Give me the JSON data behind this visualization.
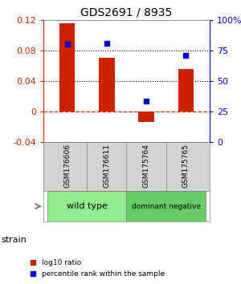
{
  "title": "GDS2691 / 8935",
  "samples": [
    "GSM176606",
    "GSM176611",
    "GSM175764",
    "GSM175765"
  ],
  "log10_ratio": [
    0.116,
    0.07,
    -0.014,
    0.055
  ],
  "percentile_rank": [
    80,
    81,
    33,
    71
  ],
  "groups": [
    {
      "label": "wild type",
      "samples": [
        0,
        1
      ],
      "color": "#90ee90"
    },
    {
      "label": "dominant negative",
      "samples": [
        2,
        3
      ],
      "color": "#66cc66"
    }
  ],
  "bar_color": "#cc2200",
  "dot_color": "#0000cc",
  "ylim_left": [
    -0.04,
    0.12
  ],
  "ylim_right": [
    0,
    100
  ],
  "yticks_left": [
    -0.04,
    0,
    0.04,
    0.08,
    0.12
  ],
  "yticks_right": [
    0,
    25,
    50,
    75,
    100
  ],
  "ytick_labels_right": [
    "0",
    "25",
    "50",
    "75",
    "100%"
  ],
  "hlines": [
    0.04,
    0.08
  ],
  "hline_zero": 0,
  "dotted_color": "black",
  "zero_line_color": "#cc2200",
  "bar_width": 0.4,
  "background_color": "#ffffff",
  "plot_bg_color": "#ffffff",
  "strain_label": "strain",
  "legend_red_label": "log10 ratio",
  "legend_blue_label": "percentile rank within the sample",
  "group_bg": "#d3d3d3"
}
